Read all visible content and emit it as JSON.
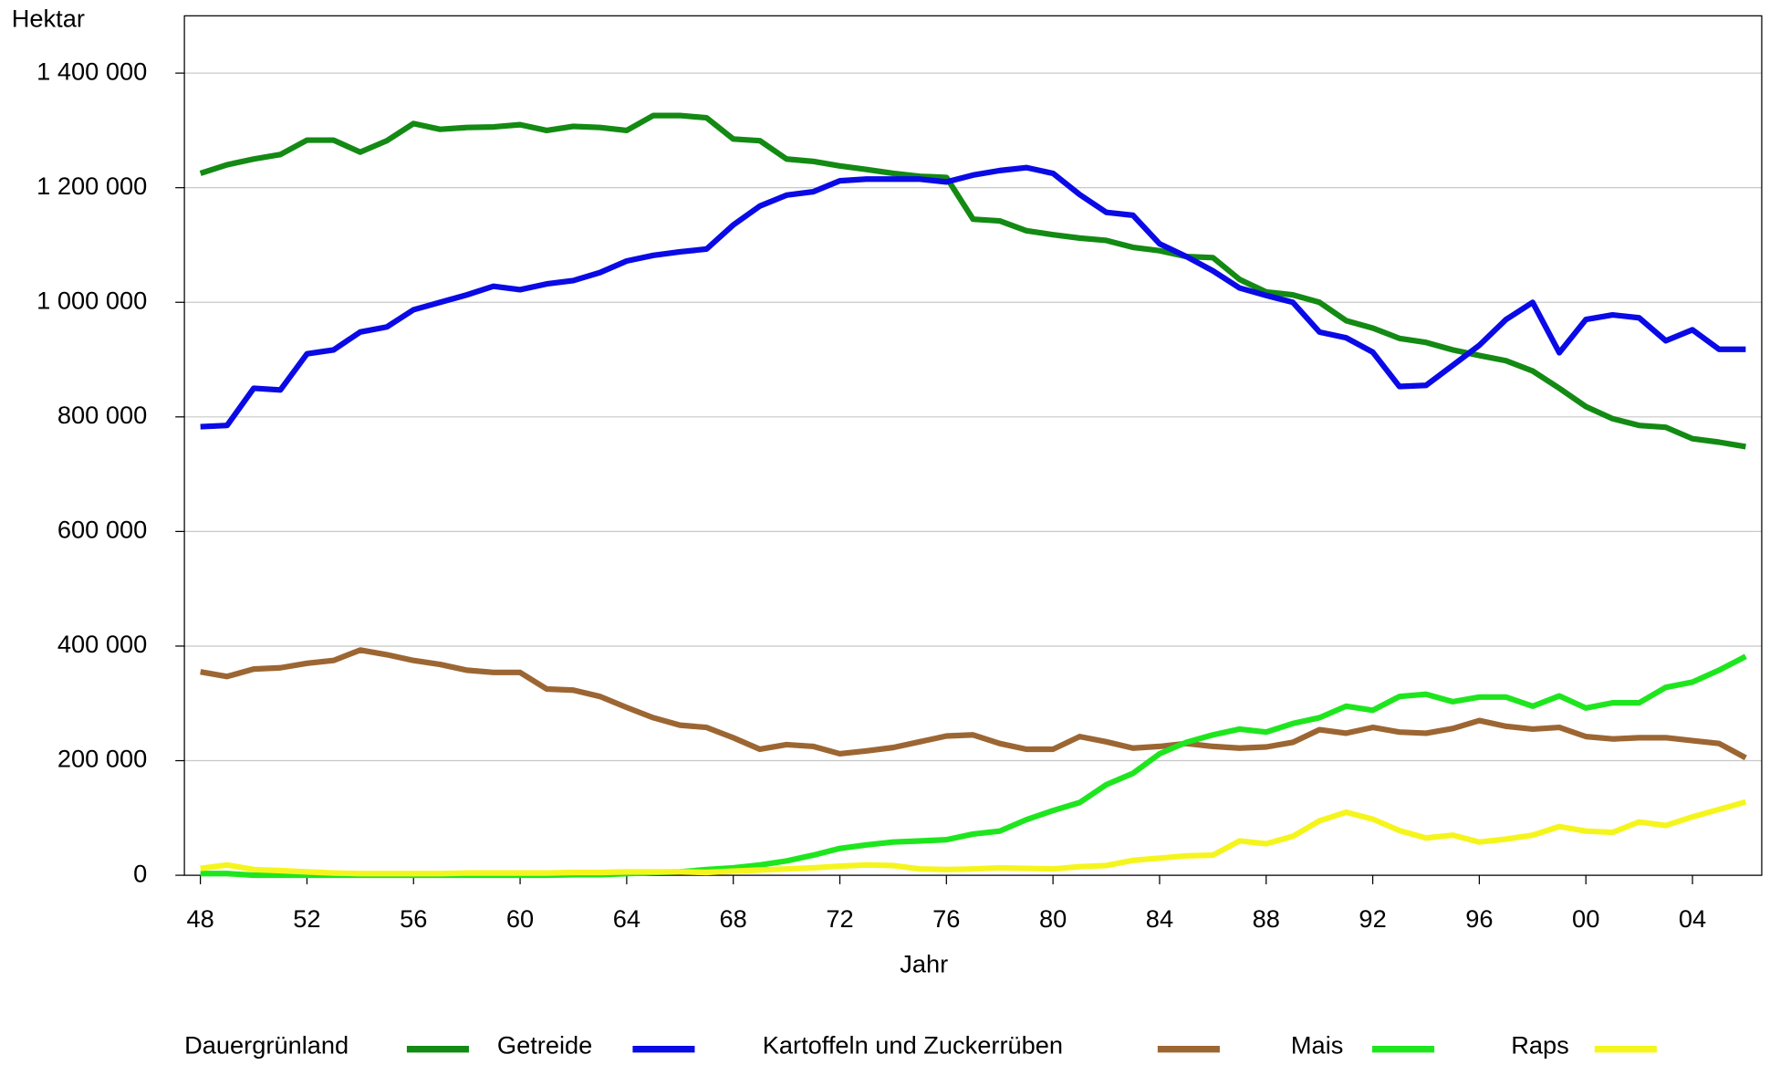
{
  "chart_data": {
    "type": "line",
    "y_label": "Hektar",
    "x_label": "Jahr",
    "x": [
      1948,
      1949,
      1950,
      1951,
      1952,
      1953,
      1954,
      1955,
      1956,
      1957,
      1958,
      1959,
      1960,
      1961,
      1962,
      1963,
      1964,
      1965,
      1966,
      1967,
      1968,
      1969,
      1970,
      1971,
      1972,
      1973,
      1974,
      1975,
      1976,
      1977,
      1978,
      1979,
      1980,
      1981,
      1982,
      1983,
      1984,
      1985,
      1986,
      1987,
      1988,
      1989,
      1990,
      1991,
      1992,
      1993,
      1994,
      1995,
      1996,
      1997,
      1998,
      1999,
      2000,
      2001,
      2002,
      2003,
      2004,
      2005,
      2006
    ],
    "xlim": [
      1947.4,
      2006.6
    ],
    "xticks": [
      {
        "value": 1948,
        "label": "48"
      },
      {
        "value": 1952,
        "label": "52"
      },
      {
        "value": 1956,
        "label": "56"
      },
      {
        "value": 1960,
        "label": "60"
      },
      {
        "value": 1964,
        "label": "64"
      },
      {
        "value": 1968,
        "label": "68"
      },
      {
        "value": 1972,
        "label": "72"
      },
      {
        "value": 1976,
        "label": "76"
      },
      {
        "value": 1980,
        "label": "80"
      },
      {
        "value": 1984,
        "label": "84"
      },
      {
        "value": 1988,
        "label": "88"
      },
      {
        "value": 1992,
        "label": "92"
      },
      {
        "value": 1996,
        "label": "96"
      },
      {
        "value": 2000,
        "label": "00"
      },
      {
        "value": 2004,
        "label": "04"
      }
    ],
    "ylim": [
      0,
      1500000
    ],
    "yticks": [
      0,
      {
        "value": 200000,
        "label": "200 000"
      },
      {
        "value": 400000,
        "label": "400 000"
      },
      {
        "value": 600000,
        "label": "600 000"
      },
      {
        "value": 800000,
        "label": "800 000"
      },
      {
        "value": 1000000,
        "label": "1 000 000"
      },
      {
        "value": 1200000,
        "label": "1 200 000"
      },
      {
        "value": 1400000,
        "label": "1 400 000"
      }
    ],
    "grid": true,
    "legend": "bottom",
    "series": [
      {
        "name": "Dauergrünland",
        "color": "#138a13",
        "values": [
          1225000,
          1240000,
          1250000,
          1258000,
          1283000,
          1283000,
          1262000,
          1282000,
          1312000,
          1302000,
          1305000,
          1306000,
          1310000,
          1300000,
          1307000,
          1305000,
          1300000,
          1326000,
          1326000,
          1322000,
          1285000,
          1282000,
          1250000,
          1246000,
          1238000,
          1232000,
          1225000,
          1220000,
          1218000,
          1145000,
          1142000,
          1125000,
          1118000,
          1112000,
          1108000,
          1096000,
          1090000,
          1080000,
          1078000,
          1040000,
          1018000,
          1013000,
          1000000,
          968000,
          955000,
          937000,
          930000,
          917000,
          907000,
          898000,
          880000,
          850000,
          818000,
          797000,
          785000,
          782000,
          762000,
          756000,
          748000
        ]
      },
      {
        "name": "Getreide",
        "color": "#0a0ae6",
        "values": [
          783000,
          785000,
          850000,
          847000,
          910000,
          917000,
          948000,
          957000,
          987000,
          1000000,
          1013000,
          1028000,
          1022000,
          1032000,
          1038000,
          1052000,
          1072000,
          1082000,
          1088000,
          1093000,
          1135000,
          1168000,
          1187000,
          1193000,
          1212000,
          1215000,
          1215000,
          1215000,
          1210000,
          1222000,
          1230000,
          1235000,
          1225000,
          1188000,
          1157000,
          1152000,
          1102000,
          1080000,
          1055000,
          1025000,
          1012000,
          1000000,
          948000,
          938000,
          913000,
          853000,
          855000,
          890000,
          925000,
          970000,
          1000000,
          912000,
          970000,
          978000,
          973000,
          933000,
          952000,
          918000,
          918000
        ]
      },
      {
        "name": "Kartoffeln und Zuckerrüben",
        "color": "#9c6633",
        "values": [
          355000,
          347000,
          360000,
          362000,
          370000,
          375000,
          393000,
          385000,
          375000,
          368000,
          358000,
          354000,
          354000,
          325000,
          323000,
          312000,
          293000,
          275000,
          262000,
          258000,
          240000,
          220000,
          228000,
          225000,
          212000,
          217000,
          223000,
          233000,
          243000,
          245000,
          230000,
          220000,
          220000,
          242000,
          233000,
          222000,
          225000,
          230000,
          225000,
          222000,
          224000,
          232000,
          254000,
          248000,
          258000,
          250000,
          248000,
          256000,
          270000,
          260000,
          255000,
          258000,
          242000,
          238000,
          240000,
          240000,
          235000,
          230000,
          205000
        ]
      },
      {
        "name": "Mais",
        "color": "#1ee61e",
        "values": [
          3000,
          3000,
          0,
          0,
          0,
          0,
          0,
          0,
          0,
          0,
          0,
          0,
          0,
          0,
          1000,
          1000,
          3000,
          5000,
          6000,
          10000,
          13000,
          18000,
          25000,
          35000,
          47000,
          53000,
          58000,
          60000,
          62000,
          72000,
          77000,
          97000,
          113000,
          127000,
          158000,
          178000,
          212000,
          232000,
          245000,
          255000,
          250000,
          265000,
          275000,
          295000,
          288000,
          312000,
          316000,
          303000,
          311000,
          311000,
          295000,
          313000,
          292000,
          301000,
          301000,
          328000,
          337000,
          358000,
          382000
        ]
      },
      {
        "name": "Raps",
        "color": "#f5f51e",
        "values": [
          12000,
          18000,
          10000,
          8000,
          6000,
          4000,
          3000,
          3000,
          3000,
          3000,
          4000,
          4000,
          4000,
          4000,
          5000,
          5000,
          6000,
          6000,
          6000,
          5000,
          7000,
          9000,
          11000,
          13000,
          16000,
          18000,
          17000,
          11000,
          10000,
          11000,
          13000,
          12000,
          11000,
          15000,
          17000,
          26000,
          30000,
          34000,
          35000,
          60000,
          55000,
          68000,
          95000,
          110000,
          98000,
          78000,
          65000,
          70000,
          58000,
          63000,
          70000,
          85000,
          77000,
          75000,
          93000,
          87000,
          102000,
          115000,
          128000
        ]
      }
    ]
  }
}
